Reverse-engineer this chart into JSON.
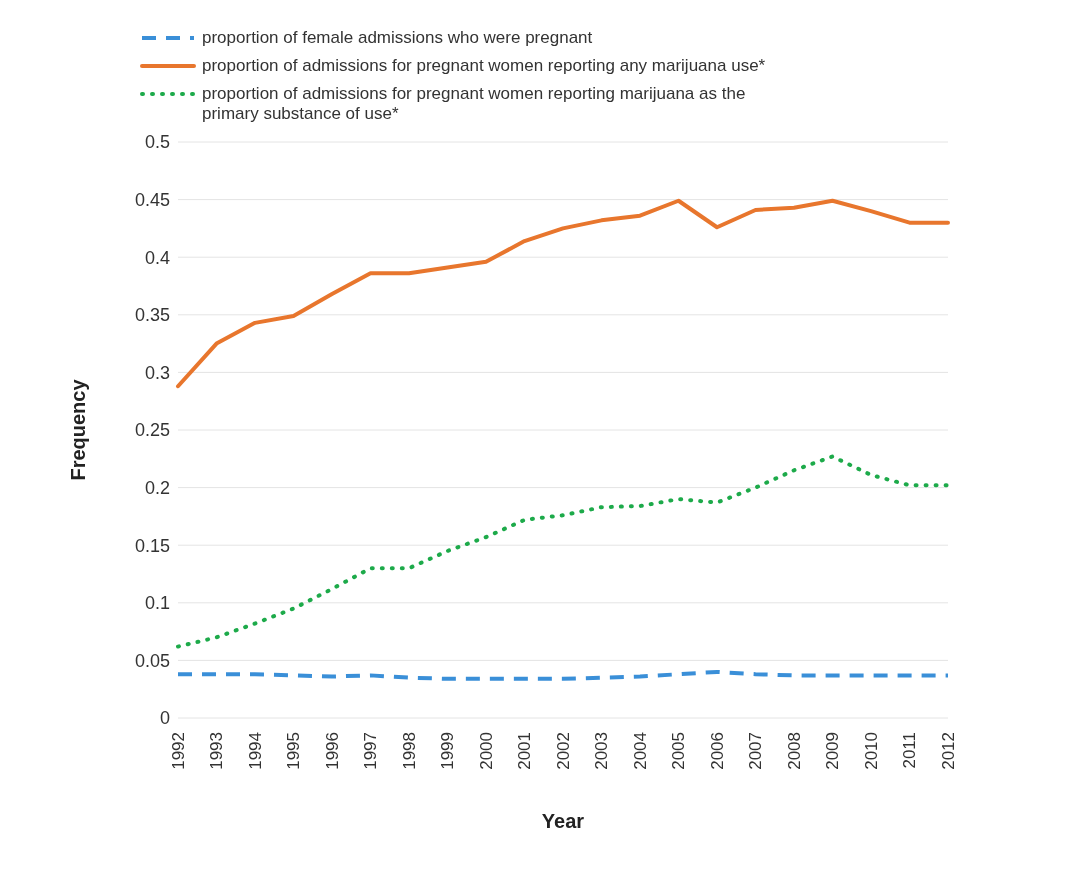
{
  "chart_data": {
    "type": "line",
    "xlabel": "Year",
    "ylabel": "Frequency",
    "categories": [
      "1992",
      "1993",
      "1994",
      "1995",
      "1996",
      "1997",
      "1998",
      "1999",
      "2000",
      "2001",
      "2002",
      "2003",
      "2004",
      "2005",
      "2006",
      "2007",
      "2008",
      "2009",
      "2010",
      "2011",
      "2012"
    ],
    "series": [
      {
        "name": "proportion of female admissions who were pregnant",
        "color": "#3a8fd8",
        "line_style": "dashed",
        "values": [
          0.038,
          0.038,
          0.038,
          0.037,
          0.036,
          0.037,
          0.035,
          0.034,
          0.034,
          0.034,
          0.034,
          0.035,
          0.036,
          0.038,
          0.04,
          0.038,
          0.037,
          0.037,
          0.037,
          0.037,
          0.037
        ]
      },
      {
        "name": "proportion of admissions for pregnant women reporting any marijuana use*",
        "color": "#e8762d",
        "line_style": "solid",
        "values": [
          0.288,
          0.325,
          0.343,
          0.349,
          0.368,
          0.386,
          0.386,
          0.391,
          0.396,
          0.414,
          0.425,
          0.432,
          0.436,
          0.449,
          0.426,
          0.441,
          0.443,
          0.449,
          0.44,
          0.43,
          0.43
        ]
      },
      {
        "name": "proportion of admissions for pregnant women reporting marijuana as the primary substance of use*",
        "color": "#1daa4a",
        "line_style": "dotted",
        "values": [
          0.062,
          0.07,
          0.082,
          0.095,
          0.112,
          0.13,
          0.13,
          0.145,
          0.157,
          0.172,
          0.176,
          0.183,
          0.184,
          0.19,
          0.187,
          0.2,
          0.215,
          0.227,
          0.211,
          0.202,
          0.202
        ]
      }
    ],
    "ylim": [
      0,
      0.5
    ],
    "yticks": [
      0,
      0.05,
      0.1,
      0.15,
      0.2,
      0.25,
      0.3,
      0.35,
      0.4,
      0.45,
      0.5
    ],
    "grid": "y",
    "legend": "top",
    "marker": "none"
  }
}
